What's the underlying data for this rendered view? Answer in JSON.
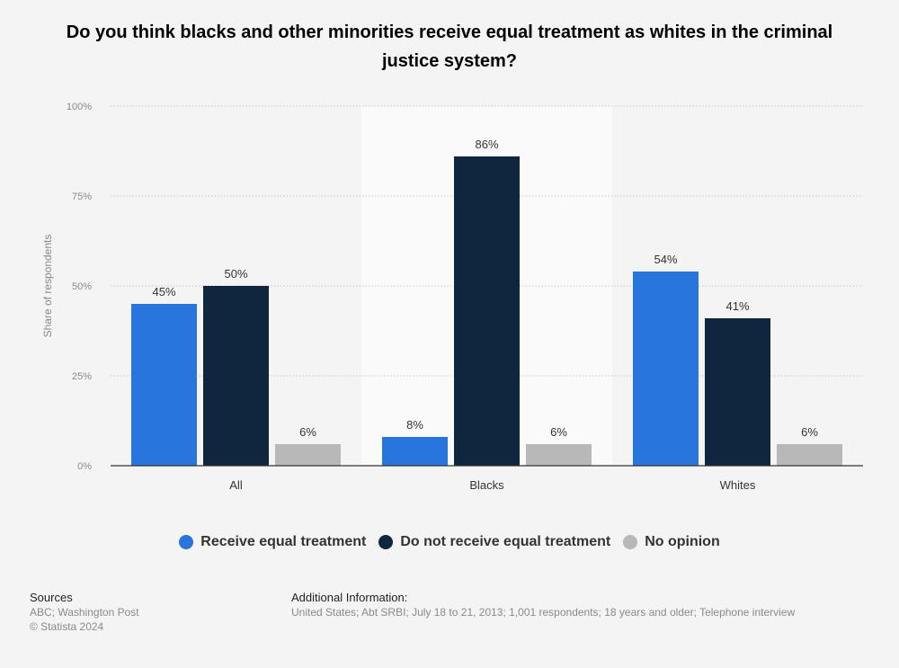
{
  "title": "Do you think blacks and other minorities receive equal treatment as whites in the criminal justice system?",
  "legend": [
    {
      "label": "Receive equal treatment",
      "color": "#2876dd"
    },
    {
      "label": "Do not receive equal treatment",
      "color": "#10263f"
    },
    {
      "label": "No opinion",
      "color": "#b8b8b8"
    }
  ],
  "footer": {
    "sources_heading": "Sources",
    "sources_text": "ABC; Washington Post",
    "copyright": "© Statista 2024",
    "additional_heading": "Additional Information:",
    "additional_text": "United States; Abt SRBI; July 18 to 21, 2013; 1,001 respondents; 18 years and older; Telephone interview"
  },
  "chart_data": {
    "type": "bar",
    "categories": [
      "All",
      "Blacks",
      "Whites"
    ],
    "series": [
      {
        "name": "Receive equal treatment",
        "values": [
          45,
          8,
          54
        ],
        "color": "#2876dd"
      },
      {
        "name": "Do not receive equal treatment",
        "values": [
          50,
          86,
          41
        ],
        "color": "#10263f"
      },
      {
        "name": "No opinion",
        "values": [
          6,
          6,
          6
        ],
        "color": "#b8b8b8"
      }
    ],
    "value_labels": [
      [
        "45%",
        "8%",
        "54%"
      ],
      [
        "50%",
        "86%",
        "41%"
      ],
      [
        "6%",
        "6%",
        "6%"
      ]
    ],
    "ylabel": "Share of respondents",
    "ylim": [
      0,
      100
    ],
    "yticks": [
      0,
      25,
      50,
      75,
      100
    ],
    "ytick_labels": [
      "0%",
      "25%",
      "50%",
      "75%",
      "100%"
    ],
    "highlight_category": "Blacks",
    "grid": true,
    "legend_position": "bottom"
  }
}
